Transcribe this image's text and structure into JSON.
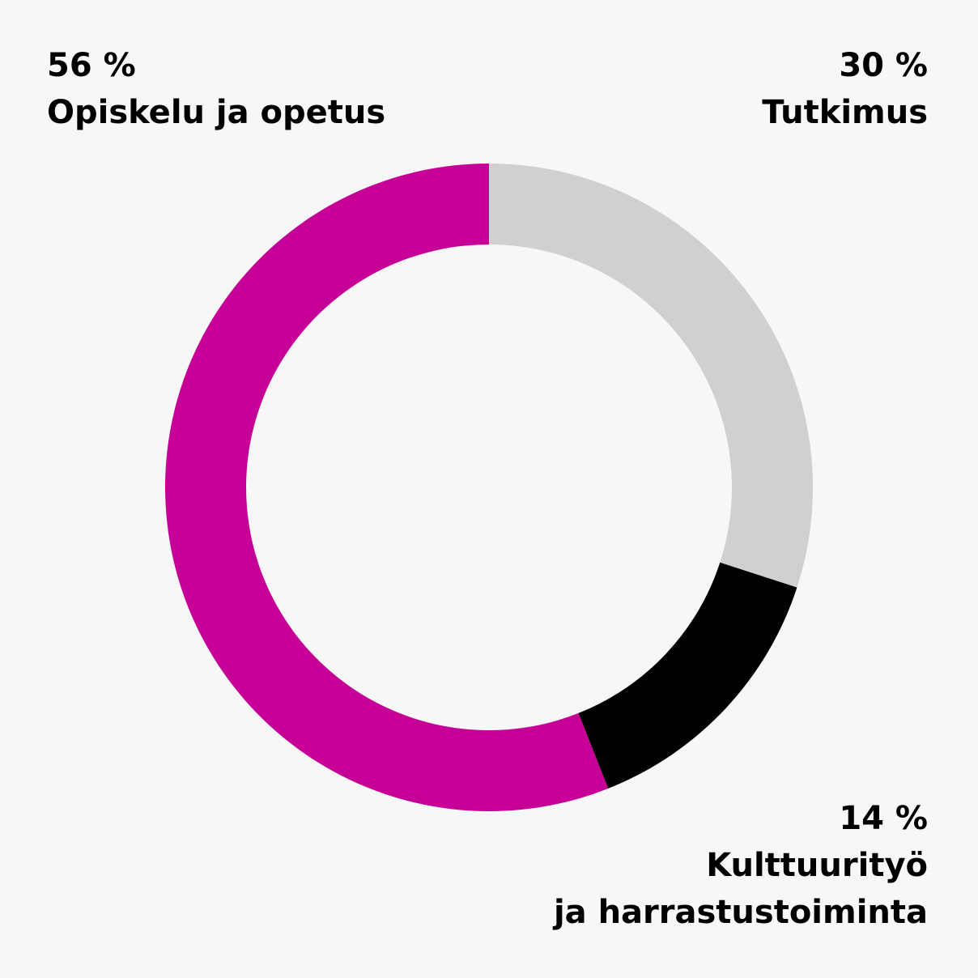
{
  "chart_data": {
    "type": "pie",
    "variant": "donut",
    "start": "top",
    "direction": "clockwise",
    "slices": [
      {
        "percent_label": "30 %",
        "name_lines": [
          "Tutkimus"
        ],
        "value": 30,
        "color": "#d1cfd0"
      },
      {
        "percent_label": "14 %",
        "name_lines": [
          "Kulttuurityö",
          "ja harrastustoiminta"
        ],
        "value": 14,
        "color": "#000000"
      },
      {
        "percent_label": "56 %",
        "name_lines": [
          "Opiskelu ja opetus"
        ],
        "value": 56,
        "color": "#c60096"
      }
    ]
  }
}
